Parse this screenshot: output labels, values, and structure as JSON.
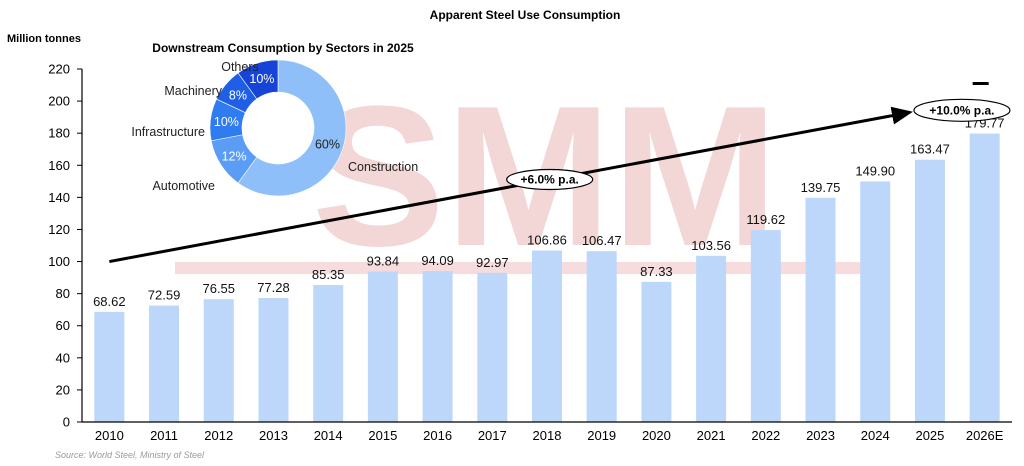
{
  "chart_data": [
    {
      "type": "bar",
      "title": "Apparent Steel Use Consumption",
      "ylabel": "Million tonnes",
      "xlabel": "",
      "ylim": [
        0,
        220
      ],
      "yticks": [
        0,
        20,
        40,
        60,
        80,
        100,
        120,
        140,
        160,
        180,
        200,
        220
      ],
      "grid": false,
      "categories": [
        "2010",
        "2011",
        "2012",
        "2013",
        "2014",
        "2015",
        "2016",
        "2017",
        "2018",
        "2019",
        "2020",
        "2021",
        "2022",
        "2023",
        "2024",
        "2025",
        "2026E"
      ],
      "values": [
        68.62,
        72.59,
        76.55,
        77.28,
        85.35,
        93.84,
        94.09,
        92.97,
        106.86,
        106.47,
        87.33,
        103.56,
        119.62,
        139.75,
        149.9,
        163.47,
        179.77
      ],
      "value_labels": [
        "68.62",
        "72.59",
        "76.55",
        "77.28",
        "85.35",
        "93.84",
        "94.09",
        "92.97",
        "106.86",
        "106.47",
        "87.33",
        "103.56",
        "119.62",
        "139.75",
        "149.90",
        "163.47",
        "179.77"
      ],
      "bar_color": "#bdd7fb",
      "annotations": [
        {
          "text": "+6.0% p.a.",
          "type": "trend-arrow",
          "from": {
            "x": "2010",
            "y": 100
          },
          "to": {
            "x": "2025",
            "y": 193
          }
        },
        {
          "text": "+10.0% p.a.",
          "type": "trend-arrow",
          "from": {
            "x": "2025",
            "y": 193
          },
          "to": {
            "x": "2026E",
            "y": 211
          }
        }
      ],
      "source": "Source: World Steel, Ministry of Steel"
    },
    {
      "type": "pie",
      "variant": "donut",
      "title": "Downstream Consumption by Sectors in 2025",
      "slices": [
        {
          "label": "Construction",
          "value": 60,
          "pct_label": "60%",
          "color": "#8fbff9",
          "pct_color": "#222222"
        },
        {
          "label": "Automotive",
          "value": 12,
          "pct_label": "12%",
          "color": "#5a9cf6",
          "pct_color": "#ffffff"
        },
        {
          "label": "Infrastructure",
          "value": 10,
          "pct_label": "10%",
          "color": "#2f7bf0",
          "pct_color": "#ffffff"
        },
        {
          "label": "Machinery",
          "value": 8,
          "pct_label": "8%",
          "color": "#1f5fe6",
          "pct_color": "#ffffff"
        },
        {
          "label": "Others",
          "value": 10,
          "pct_label": "10%",
          "color": "#1644d6",
          "pct_color": "#ffffff"
        }
      ]
    }
  ],
  "watermark": {
    "text": "SMM",
    "color": "#f2c9cb"
  }
}
